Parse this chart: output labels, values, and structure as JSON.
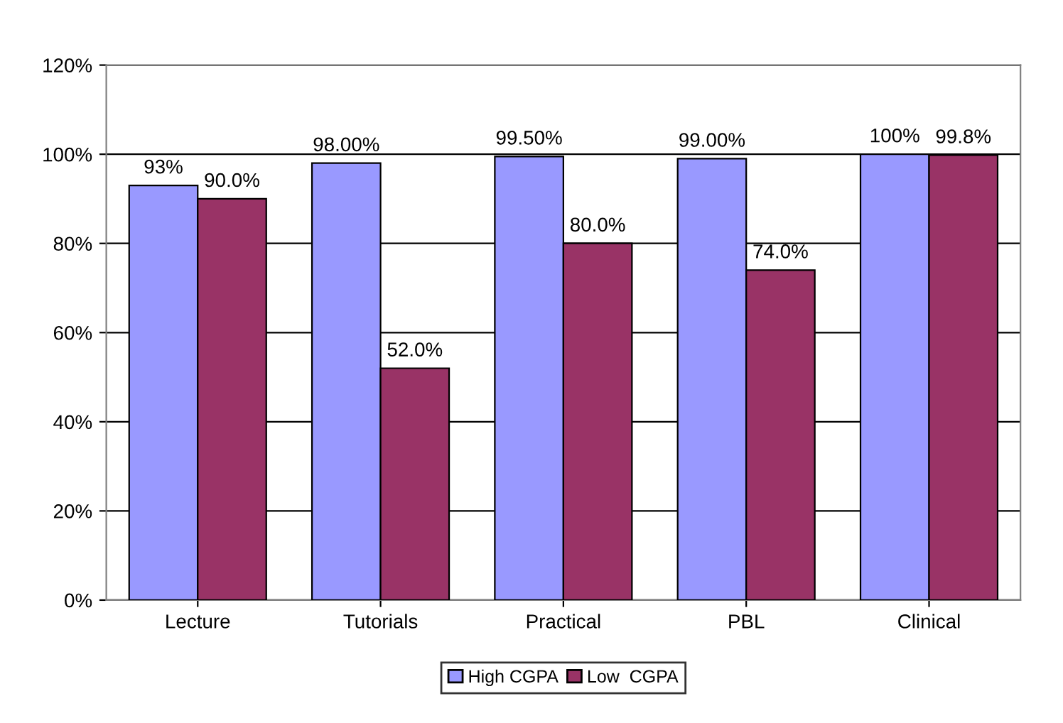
{
  "chart_data": {
    "type": "bar",
    "categories": [
      "Lecture",
      "Tutorials",
      "Practical",
      "PBL",
      "Clinical"
    ],
    "series": [
      {
        "name": "High CGPA",
        "color": "#9999ff",
        "values": [
          93,
          98,
          99.5,
          99,
          100
        ],
        "value_labels": [
          "93%",
          "98.00%",
          "99.50%",
          "99.00%",
          "100%"
        ]
      },
      {
        "name": "Low  CGPA",
        "color": "#993366",
        "values": [
          90,
          52,
          80,
          74,
          99.8
        ],
        "value_labels": [
          "90.0%",
          "52.0%",
          "80.0%",
          "74.0%",
          "99.8%"
        ]
      }
    ],
    "ylim": [
      0,
      120
    ],
    "yticks": [
      {
        "value": 0,
        "label": "0%"
      },
      {
        "value": 20,
        "label": "20%"
      },
      {
        "value": 40,
        "label": "40%"
      },
      {
        "value": 60,
        "label": "60%"
      },
      {
        "value": 80,
        "label": "80%"
      },
      {
        "value": 100,
        "label": "100%"
      },
      {
        "value": 120,
        "label": "120%"
      }
    ],
    "grid": "y",
    "legend": "bottom"
  }
}
